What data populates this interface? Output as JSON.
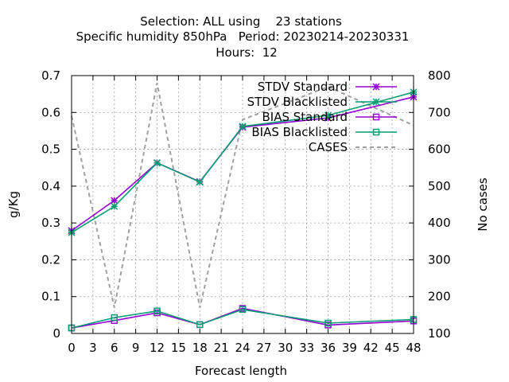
{
  "chart_data": {
    "type": "line",
    "title_lines": [
      "Selection: ALL using    23 stations",
      "Specific humidity 850hPa   Period: 20230214-20230331",
      "Hours:  12"
    ],
    "xlabel": "Forecast length",
    "ylabel": "g/Kg",
    "y2label": "No cases",
    "xlim": [
      0,
      48
    ],
    "ylim": [
      0,
      0.7
    ],
    "y2lim": [
      100,
      800
    ],
    "x_ticks": [
      0,
      3,
      6,
      9,
      12,
      15,
      18,
      21,
      24,
      27,
      30,
      33,
      36,
      39,
      42,
      45,
      48
    ],
    "y_ticks": [
      0,
      0.1,
      0.2,
      0.3,
      0.4,
      0.5,
      0.6,
      0.7
    ],
    "y_tick_labels": [
      "0",
      "0.1",
      "0.2",
      "0.3",
      "0.4",
      "0.5",
      "0.6",
      "0.7"
    ],
    "y2_ticks": [
      100,
      200,
      300,
      400,
      500,
      600,
      700,
      800
    ],
    "grid": true,
    "legend_position": "top-right",
    "series": [
      {
        "name": "STDV Standard",
        "axis": "y",
        "color": "#9400d3",
        "marker": "x",
        "dash": false,
        "x": [
          0,
          6,
          12,
          18,
          24,
          36,
          48
        ],
        "y": [
          0.279,
          0.361,
          0.463,
          0.412,
          0.56,
          0.585,
          0.642
        ]
      },
      {
        "name": "STDV Blacklisted",
        "axis": "y",
        "color": "#009e73",
        "marker": "x",
        "dash": false,
        "x": [
          0,
          6,
          12,
          18,
          24,
          36,
          48
        ],
        "y": [
          0.274,
          0.345,
          0.463,
          0.411,
          0.562,
          0.592,
          0.655
        ]
      },
      {
        "name": "BIAS Standard",
        "axis": "y",
        "color": "#9400d3",
        "marker": "square",
        "dash": false,
        "x": [
          0,
          6,
          12,
          18,
          24,
          36,
          48
        ],
        "y": [
          0.015,
          0.035,
          0.056,
          0.024,
          0.068,
          0.023,
          0.034
        ]
      },
      {
        "name": "BIAS Blacklisted",
        "axis": "y",
        "color": "#009e73",
        "marker": "square",
        "dash": false,
        "x": [
          0,
          6,
          12,
          18,
          24,
          36,
          48
        ],
        "y": [
          0.015,
          0.043,
          0.061,
          0.024,
          0.065,
          0.028,
          0.038
        ]
      },
      {
        "name": "CASES",
        "axis": "y2",
        "color": "#a0a0a0",
        "marker": "none",
        "dash": true,
        "x": [
          0,
          6,
          12,
          18,
          24,
          36,
          48
        ],
        "y": [
          690,
          170,
          780,
          170,
          680,
          770,
          665
        ]
      }
    ]
  }
}
